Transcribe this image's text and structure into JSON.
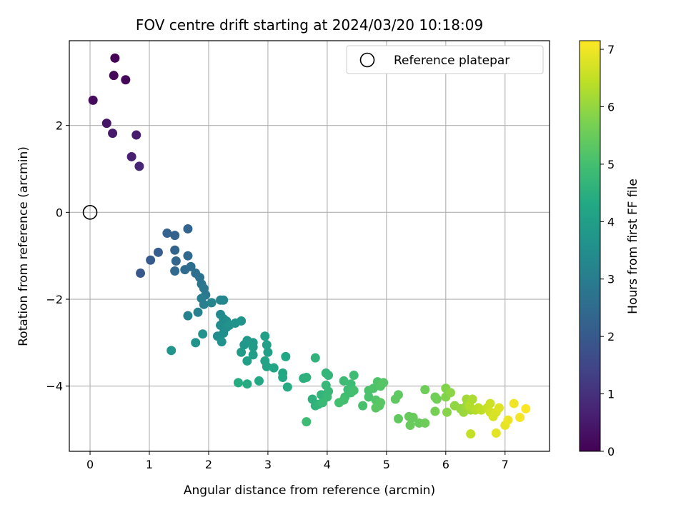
{
  "chart_data": {
    "type": "scatter",
    "title": "FOV centre drift starting at 2024/03/20 10:18:09",
    "xlabel": "Angular distance from reference (arcmin)",
    "ylabel": "Rotation from reference (arcmin)",
    "xlim": [
      -0.35,
      7.75
    ],
    "ylim": [
      -5.5,
      3.95
    ],
    "xticks": [
      0,
      1,
      2,
      3,
      4,
      5,
      6,
      7
    ],
    "xtick_labels": [
      "0",
      "1",
      "2",
      "3",
      "4",
      "5",
      "6",
      "7"
    ],
    "yticks": [
      -4,
      -2,
      0,
      2
    ],
    "ytick_labels": [
      "−4",
      "−2",
      "0",
      "2"
    ],
    "grid": true,
    "legend": {
      "position": "top-right",
      "entries": [
        "Reference platepar"
      ]
    },
    "reference_point": {
      "x": 0,
      "y": 0,
      "label": "Reference platepar",
      "marker": "open-circle"
    },
    "colorbar": {
      "label": "Hours from first FF file",
      "colormap": "viridis",
      "range": [
        0,
        7.15
      ],
      "ticks": [
        0,
        1,
        2,
        3,
        4,
        5,
        6,
        7
      ],
      "tick_labels": [
        "0",
        "1",
        "2",
        "3",
        "4",
        "5",
        "6",
        "7"
      ]
    },
    "points": [
      [
        0.42,
        3.55,
        0.05
      ],
      [
        0.4,
        3.15,
        0.1
      ],
      [
        0.6,
        3.05,
        0.12
      ],
      [
        0.05,
        2.58,
        0.2
      ],
      [
        0.28,
        2.05,
        0.4
      ],
      [
        0.38,
        1.82,
        0.5
      ],
      [
        0.78,
        1.78,
        0.55
      ],
      [
        0.7,
        1.28,
        0.65
      ],
      [
        0.83,
        1.06,
        0.75
      ],
      [
        1.3,
        -0.48,
        2.2
      ],
      [
        1.43,
        -0.53,
        2.25
      ],
      [
        1.65,
        -0.38,
        2.3
      ],
      [
        1.15,
        -0.92,
        2.1
      ],
      [
        1.02,
        -1.1,
        2.0
      ],
      [
        0.85,
        -1.4,
        1.95
      ],
      [
        1.43,
        -0.87,
        2.3
      ],
      [
        1.45,
        -1.12,
        2.35
      ],
      [
        1.65,
        -1.0,
        2.4
      ],
      [
        1.43,
        -1.35,
        2.4
      ],
      [
        1.6,
        -1.32,
        2.5
      ],
      [
        1.7,
        -1.25,
        2.55
      ],
      [
        1.78,
        -1.4,
        2.6
      ],
      [
        1.85,
        -1.5,
        2.7
      ],
      [
        1.88,
        -1.65,
        2.8
      ],
      [
        1.92,
        -1.75,
        2.85
      ],
      [
        1.95,
        -1.9,
        2.9
      ],
      [
        1.88,
        -1.98,
        3.0
      ],
      [
        1.92,
        -2.12,
        3.05
      ],
      [
        1.82,
        -2.3,
        3.1
      ],
      [
        1.65,
        -2.38,
        3.15
      ],
      [
        2.05,
        -2.08,
        3.2
      ],
      [
        2.2,
        -2.02,
        3.25
      ],
      [
        2.25,
        -2.02,
        3.3
      ],
      [
        2.2,
        -2.35,
        3.35
      ],
      [
        2.25,
        -2.45,
        3.4
      ],
      [
        2.3,
        -2.5,
        3.45
      ],
      [
        2.2,
        -2.6,
        3.5
      ],
      [
        2.3,
        -2.65,
        3.55
      ],
      [
        2.35,
        -2.6,
        3.6
      ],
      [
        2.45,
        -2.55,
        3.65
      ],
      [
        2.55,
        -2.5,
        3.7
      ],
      [
        2.15,
        -2.85,
        3.5
      ],
      [
        2.25,
        -2.78,
        3.55
      ],
      [
        1.9,
        -2.8,
        3.6
      ],
      [
        1.78,
        -3.0,
        3.65
      ],
      [
        2.22,
        -2.98,
        3.6
      ],
      [
        1.37,
        -3.18,
        3.7
      ],
      [
        2.6,
        -3.05,
        3.75
      ],
      [
        2.65,
        -2.95,
        3.8
      ],
      [
        2.75,
        -3.0,
        3.85
      ],
      [
        2.75,
        -3.1,
        3.9
      ],
      [
        2.55,
        -3.22,
        3.9
      ],
      [
        2.75,
        -3.28,
        3.95
      ],
      [
        2.65,
        -3.42,
        4.0
      ],
      [
        2.95,
        -2.85,
        4.0
      ],
      [
        2.98,
        -3.05,
        4.05
      ],
      [
        3.0,
        -3.22,
        4.05
      ],
      [
        2.95,
        -3.42,
        4.1
      ],
      [
        2.98,
        -3.55,
        4.15
      ],
      [
        3.1,
        -3.58,
        4.2
      ],
      [
        3.3,
        -3.32,
        4.25
      ],
      [
        3.25,
        -3.7,
        4.25
      ],
      [
        3.25,
        -3.8,
        4.3
      ],
      [
        3.33,
        -4.02,
        4.35
      ],
      [
        2.85,
        -3.88,
        4.3
      ],
      [
        2.65,
        -3.95,
        4.35
      ],
      [
        2.5,
        -3.92,
        4.4
      ],
      [
        3.6,
        -3.82,
        4.5
      ],
      [
        3.65,
        -3.8,
        4.55
      ],
      [
        3.8,
        -3.35,
        4.6
      ],
      [
        3.75,
        -4.3,
        4.55
      ],
      [
        3.8,
        -4.45,
        4.6
      ],
      [
        3.85,
        -4.42,
        4.65
      ],
      [
        3.9,
        -4.2,
        4.65
      ],
      [
        3.98,
        -3.7,
        4.7
      ],
      [
        4.02,
        -3.75,
        4.7
      ],
      [
        3.98,
        -3.98,
        4.75
      ],
      [
        4.02,
        -4.12,
        4.75
      ],
      [
        4.0,
        -4.25,
        4.8
      ],
      [
        3.92,
        -4.38,
        4.8
      ],
      [
        3.65,
        -4.82,
        4.85
      ],
      [
        4.28,
        -3.88,
        4.85
      ],
      [
        4.4,
        -3.95,
        4.9
      ],
      [
        4.45,
        -3.75,
        4.9
      ],
      [
        4.35,
        -4.08,
        4.9
      ],
      [
        4.4,
        -4.15,
        4.95
      ],
      [
        4.3,
        -4.25,
        4.95
      ],
      [
        4.28,
        -4.32,
        5.0
      ],
      [
        4.2,
        -4.38,
        5.0
      ],
      [
        4.45,
        -4.1,
        5.0
      ],
      [
        4.6,
        -4.45,
        5.05
      ],
      [
        4.7,
        -4.25,
        5.1
      ],
      [
        4.7,
        -4.1,
        5.1
      ],
      [
        4.78,
        -4.05,
        5.15
      ],
      [
        4.85,
        -3.9,
        5.15
      ],
      [
        4.9,
        -4.0,
        5.2
      ],
      [
        4.82,
        -4.32,
        5.2
      ],
      [
        4.95,
        -3.92,
        5.25
      ],
      [
        4.88,
        -4.45,
        5.25
      ],
      [
        4.82,
        -4.5,
        5.3
      ],
      [
        4.9,
        -4.38,
        5.3
      ],
      [
        5.15,
        -4.3,
        5.35
      ],
      [
        5.2,
        -4.2,
        5.35
      ],
      [
        5.2,
        -4.75,
        5.4
      ],
      [
        5.38,
        -4.7,
        5.45
      ],
      [
        5.45,
        -4.72,
        5.45
      ],
      [
        5.4,
        -4.9,
        5.5
      ],
      [
        5.55,
        -4.85,
        5.5
      ],
      [
        5.65,
        -4.85,
        5.55
      ],
      [
        5.65,
        -4.08,
        5.55
      ],
      [
        5.82,
        -4.25,
        5.6
      ],
      [
        5.85,
        -4.3,
        5.6
      ],
      [
        5.82,
        -4.58,
        5.65
      ],
      [
        6.0,
        -4.05,
        5.8
      ],
      [
        6.0,
        -4.25,
        5.8
      ],
      [
        6.02,
        -4.6,
        5.85
      ],
      [
        6.08,
        -4.15,
        5.9
      ],
      [
        6.15,
        -4.45,
        5.95
      ],
      [
        6.25,
        -4.52,
        6.0
      ],
      [
        6.3,
        -4.6,
        6.05
      ],
      [
        6.35,
        -4.45,
        6.1
      ],
      [
        6.35,
        -4.3,
        6.15
      ],
      [
        6.42,
        -4.55,
        6.2
      ],
      [
        6.45,
        -4.3,
        6.25
      ],
      [
        6.4,
        -4.45,
        6.3
      ],
      [
        6.5,
        -4.55,
        6.35
      ],
      [
        6.55,
        -4.5,
        6.4
      ],
      [
        6.6,
        -4.55,
        6.45
      ],
      [
        6.42,
        -5.1,
        6.5
      ],
      [
        6.7,
        -4.5,
        6.55
      ],
      [
        6.75,
        -4.4,
        6.6
      ],
      [
        6.75,
        -4.6,
        6.65
      ],
      [
        6.8,
        -4.7,
        6.7
      ],
      [
        6.85,
        -4.6,
        6.75
      ],
      [
        6.9,
        -4.5,
        6.8
      ],
      [
        6.85,
        -5.08,
        6.85
      ],
      [
        7.0,
        -4.9,
        6.9
      ],
      [
        7.05,
        -4.78,
        6.95
      ],
      [
        7.15,
        -4.4,
        7.0
      ],
      [
        7.25,
        -4.72,
        7.05
      ],
      [
        7.35,
        -4.52,
        7.1
      ]
    ]
  }
}
